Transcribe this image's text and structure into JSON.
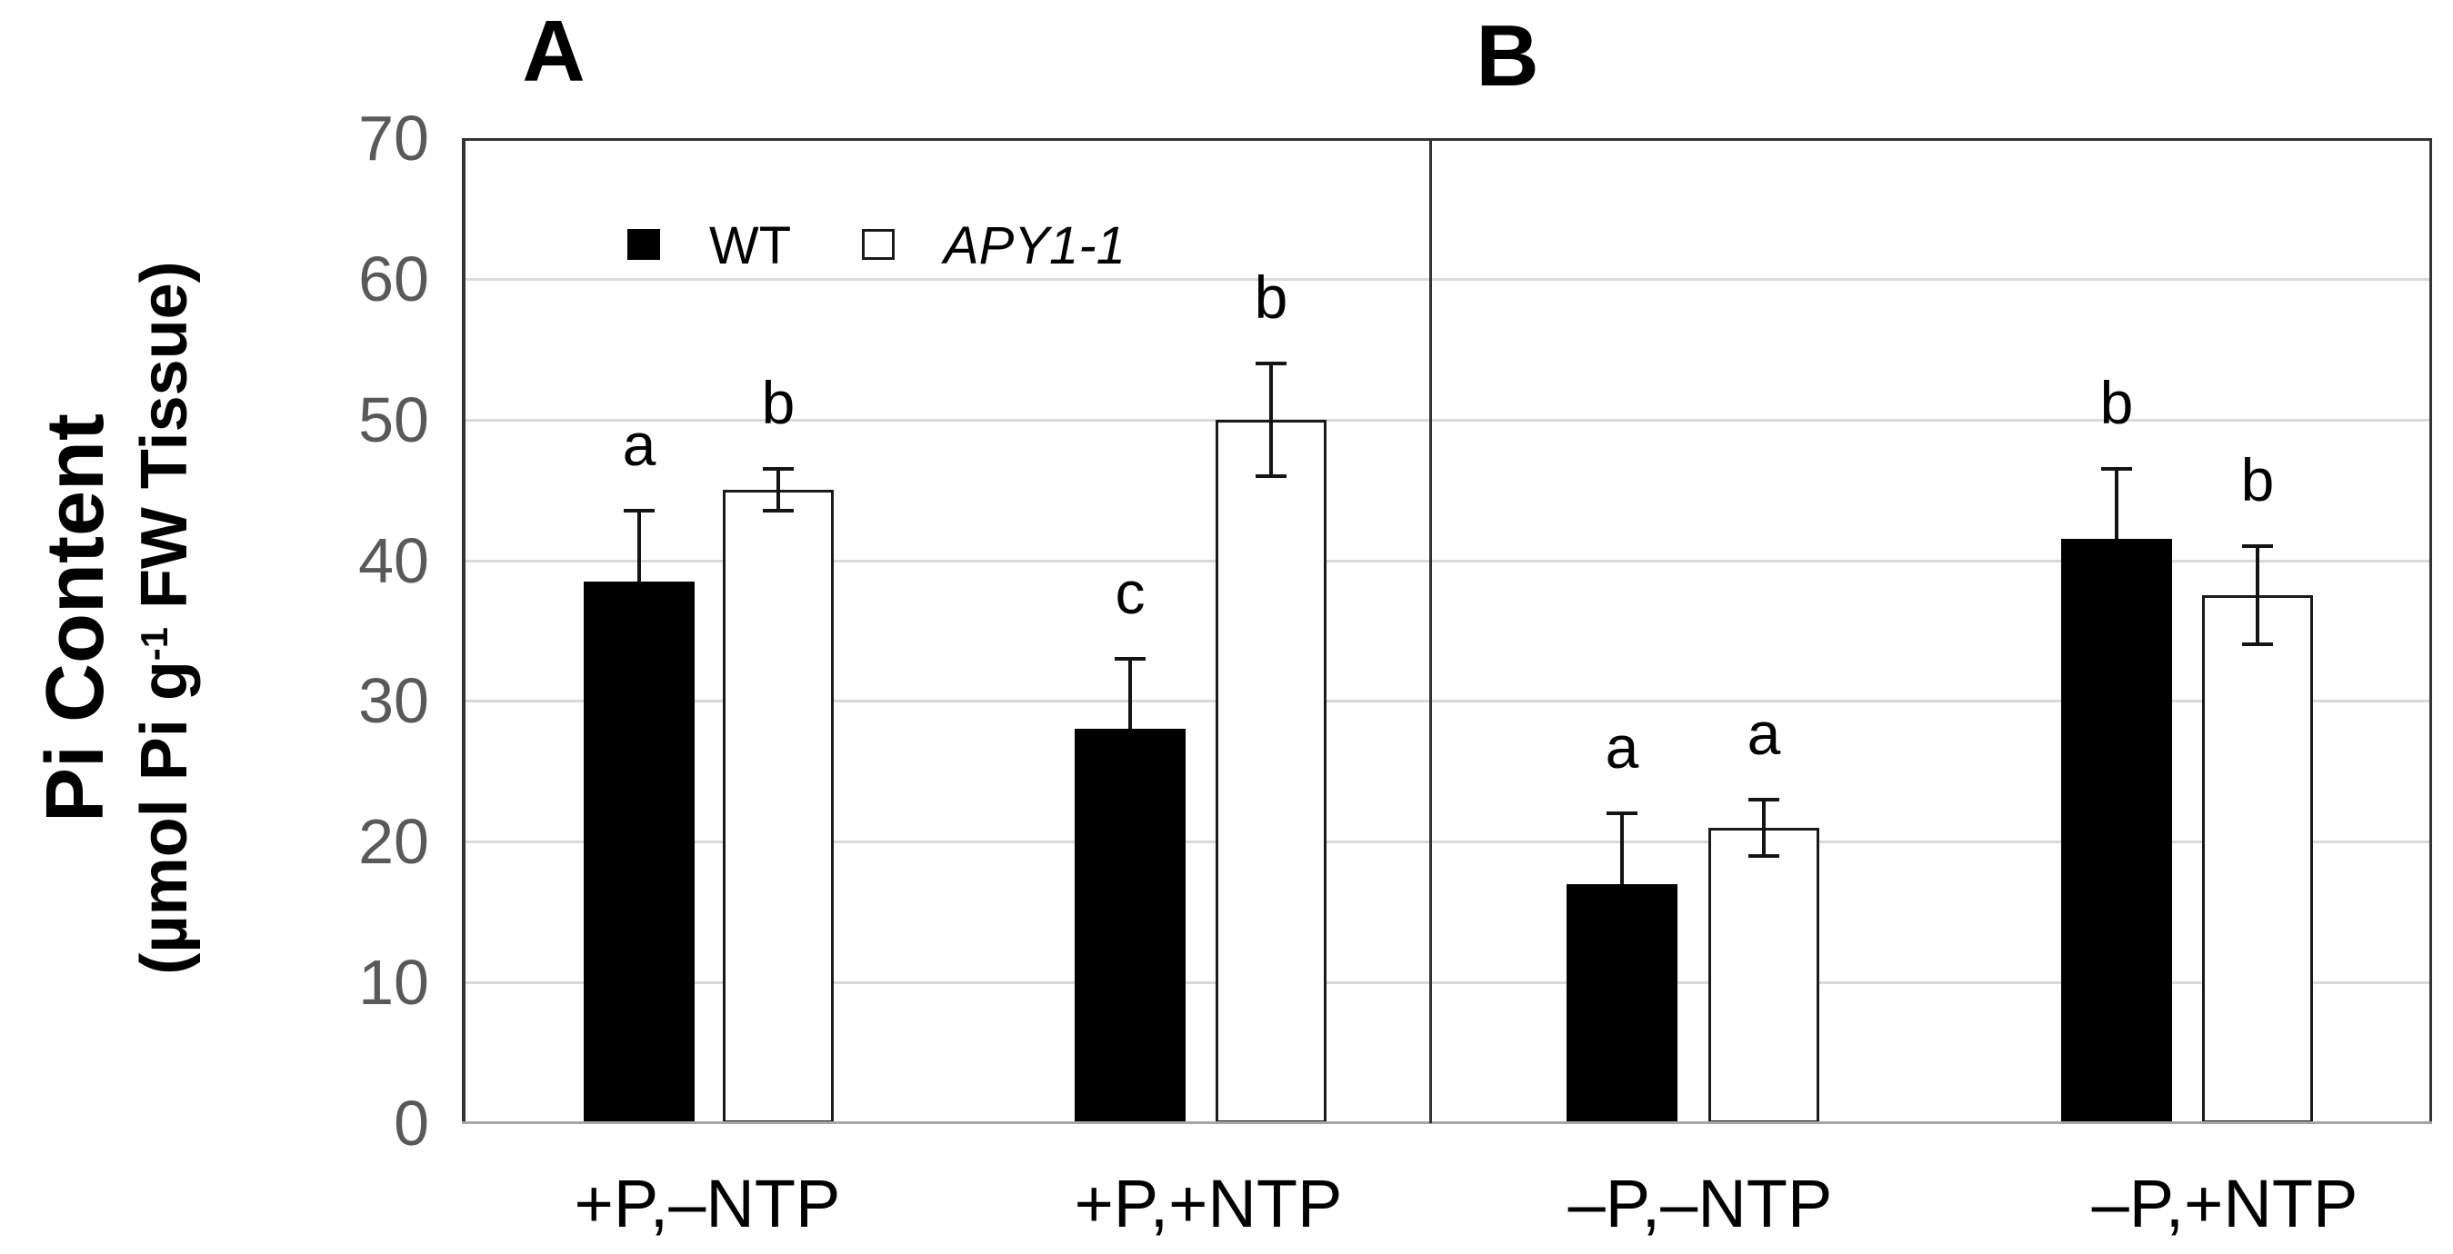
{
  "chart_data": {
    "type": "bar",
    "title": "",
    "ylabel_line1": "Pi Content",
    "ylabel_line2_pre": "(µmol Pi g",
    "ylabel_line2_sup": "-1",
    "ylabel_line2_post": " FW Tissue)",
    "ylim": [
      0,
      70
    ],
    "ytick_step": 10,
    "yticks": [
      0,
      10,
      20,
      30,
      40,
      50,
      60,
      70
    ],
    "grid": "horizontal gridlines at 10-60, light gray",
    "legend_position": "top-left inside panel A",
    "legend": [
      {
        "label": "WT",
        "fill": "#000000"
      },
      {
        "label": "APY1-1",
        "fill": "#ffffff"
      }
    ],
    "panels": [
      {
        "label": "A",
        "groups": [
          {
            "category": "+P,–NTP",
            "bars": [
              {
                "series": "WT",
                "value": 38.5,
                "error_up": 5,
                "sig": "a"
              },
              {
                "series": "APY1-1",
                "value": 45,
                "error_up": 1.5,
                "error_down": 1.5,
                "sig": "b"
              }
            ]
          },
          {
            "category": "+P,+NTP",
            "bars": [
              {
                "series": "WT",
                "value": 28,
                "error_up": 5,
                "sig": "c"
              },
              {
                "series": "APY1-1",
                "value": 50,
                "error_up": 4,
                "error_down": 4,
                "sig": "b"
              }
            ]
          }
        ]
      },
      {
        "label": "B",
        "groups": [
          {
            "category": "–P,–NTP",
            "bars": [
              {
                "series": "WT",
                "value": 17,
                "error_up": 5,
                "sig": "a"
              },
              {
                "series": "APY1-1",
                "value": 21,
                "error_up": 2,
                "error_down": 2,
                "sig": "a"
              }
            ]
          },
          {
            "category": "–P,+NTP",
            "bars": [
              {
                "series": "WT",
                "value": 41.5,
                "error_up": 5,
                "sig": "b"
              },
              {
                "series": "APY1-1",
                "value": 37.5,
                "error_up": 3.5,
                "error_down": 3.5,
                "sig": "b"
              }
            ]
          }
        ]
      }
    ],
    "colors": {
      "bar_wt": "#000000",
      "bar_apy_fill": "#ffffff",
      "bar_apy_border": "#1a1a1a",
      "gridline": "#d9d9d9",
      "frame": "#333333",
      "bottom_axis": "#a6a6a6",
      "ytick_label": "#595959",
      "text": "#000000"
    }
  }
}
